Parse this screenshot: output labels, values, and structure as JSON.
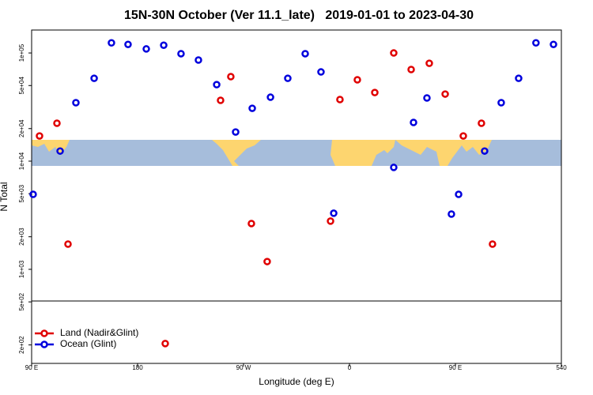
{
  "chart_data": {
    "type": "scatter",
    "title": "15N-30N October (Ver 11.1_late)   2019-01-01 to 2023-04-30",
    "xlabel": "Longitude (deg E)",
    "ylabel": "N Total",
    "log_y": true,
    "xlim": [
      90,
      540
    ],
    "ylim": [
      135,
      163000
    ],
    "xticks": [
      {
        "value": 90,
        "label": "90 E"
      },
      180,
      {
        "value": 270,
        "label": "90 W"
      },
      {
        "value": 360,
        "label": "0"
      },
      {
        "value": 450,
        "label": "90 E"
      },
      540
    ],
    "yticks": [
      {
        "value": 200,
        "label": "2e+02"
      },
      {
        "value": 500,
        "label": "5e+02"
      },
      {
        "value": 1000,
        "label": "1e+03"
      },
      {
        "value": 2000,
        "label": "2e+03"
      },
      {
        "value": 5000,
        "label": "5e+03"
      },
      {
        "value": 10000,
        "label": "1e+04"
      },
      {
        "value": 20000,
        "label": "2e+04"
      },
      {
        "value": 50000,
        "label": "5e+04"
      },
      {
        "value": 100000,
        "label": "1e+05"
      }
    ],
    "legend": "bottom-left",
    "series": [
      {
        "name": "Land (Nadir&Glint)",
        "color": "#e00000",
        "x": [
          96.7,
          111.5,
          120.9,
          203.5,
          250.5,
          259.2,
          276.7,
          290.1,
          343.9,
          351.9,
          366.7,
          381.5,
          397.6,
          412.4,
          427.8,
          441.3,
          456.7,
          472.1,
          481.5
        ],
        "values": [
          17100,
          22400,
          1710,
          206,
          36500,
          60400,
          2650,
          1180,
          2790,
          37100,
          56500,
          43100,
          100000,
          70300,
          80300,
          41700,
          17100,
          22400,
          1710
        ]
      },
      {
        "name": "Ocean (Glint)",
        "color": "#0000dd",
        "x": [
          91.3,
          114.2,
          127.6,
          143.1,
          157.8,
          171.9,
          187.4,
          202.2,
          216.9,
          231.7,
          247.2,
          263.3,
          277.4,
          292.9,
          307.6,
          322.4,
          335.8,
          346.6,
          397.6,
          414.4,
          425.8,
          446.6,
          452.7,
          474.8,
          488.9,
          503.7,
          518.4,
          533.3
        ],
        "values": [
          4930,
          12400,
          34700,
          58300,
          124000,
          120000,
          109000,
          118000,
          98500,
          86000,
          51000,
          18600,
          30800,
          39000,
          58300,
          98500,
          66800,
          3300,
          8750,
          22800,
          38400,
          3240,
          4930,
          12400,
          34700,
          58300,
          124000,
          120000
        ]
      }
    ]
  }
}
